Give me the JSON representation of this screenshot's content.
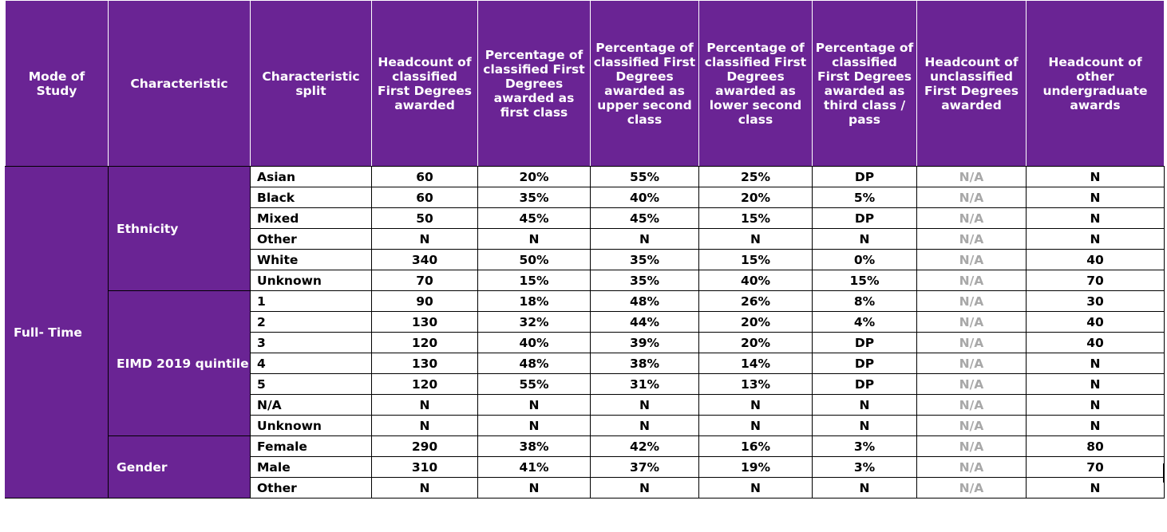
{
  "headers": [
    "Mode of Study",
    "Characteristic",
    "Characteristic split",
    "Headcount of classified First Degrees awarded",
    "Percentage of classified First Degrees awarded as first class",
    "Percentage of classified First Degrees awarded as upper second class",
    "Percentage of classified First Degrees awarded as lower second class",
    "Percentage of classified First Degrees awarded as third class / pass",
    "Headcount of unclassified First Degrees awarded",
    "Headcount of other undergraduate awards"
  ],
  "mode": "Full- Time",
  "groups": [
    {
      "characteristic": "Ethnicity",
      "rows": [
        [
          "Asian",
          "60",
          "20%",
          "55%",
          "25%",
          "DP",
          "N/A",
          "N"
        ],
        [
          "Black",
          "60",
          "35%",
          "40%",
          "20%",
          "5%",
          "N/A",
          "N"
        ],
        [
          "Mixed",
          "50",
          "45%",
          "45%",
          "15%",
          "DP",
          "N/A",
          "N"
        ],
        [
          "Other",
          "N",
          "N",
          "N",
          "N",
          "N",
          "N/A",
          "N"
        ],
        [
          "White",
          "340",
          "50%",
          "35%",
          "15%",
          "0%",
          "N/A",
          "40"
        ],
        [
          "Unknown",
          "70",
          "15%",
          "35%",
          "40%",
          "15%",
          "N/A",
          "70"
        ]
      ]
    },
    {
      "characteristic": "EIMD 2019 quintile",
      "rows": [
        [
          "1",
          "90",
          "18%",
          "48%",
          "26%",
          "8%",
          "N/A",
          "30"
        ],
        [
          "2",
          "130",
          "32%",
          "44%",
          "20%",
          "4%",
          "N/A",
          "40"
        ],
        [
          "3",
          "120",
          "40%",
          "39%",
          "20%",
          "DP",
          "N/A",
          "40"
        ],
        [
          "4",
          "130",
          "48%",
          "38%",
          "14%",
          "DP",
          "N/A",
          "N"
        ],
        [
          "5",
          "120",
          "55%",
          "31%",
          "13%",
          "DP",
          "N/A",
          "N"
        ],
        [
          "N/A",
          "N",
          "N",
          "N",
          "N",
          "N",
          "N/A",
          "N"
        ],
        [
          "Unknown",
          "N",
          "N",
          "N",
          "N",
          "N",
          "N/A",
          "N"
        ]
      ]
    },
    {
      "characteristic": "Gender",
      "rows": [
        [
          "Female",
          "290",
          "38%",
          "42%",
          "16%",
          "3%",
          "N/A",
          "80"
        ],
        [
          "Male",
          "310",
          "41%",
          "37%",
          "19%",
          "3%",
          "N/A",
          "70"
        ],
        [
          "Other",
          "N",
          "N",
          "N",
          "N",
          "N",
          "N/A",
          "N"
        ]
      ]
    }
  ],
  "colors": {
    "header_bg": "#6a2494",
    "header_text": "#ffffff",
    "na_text": "#a8a8a8"
  }
}
